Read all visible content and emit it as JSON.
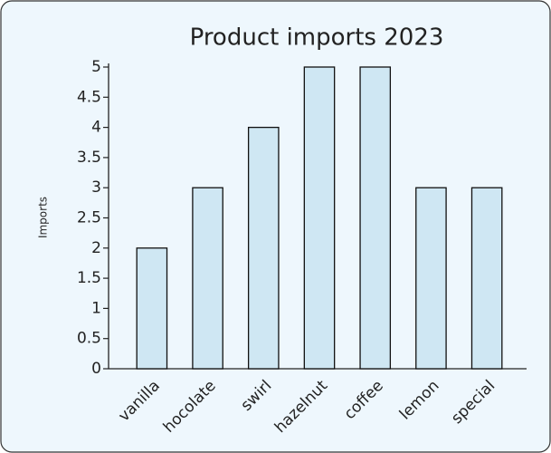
{
  "chart_data": {
    "type": "bar",
    "title": "Product imports 2023",
    "ylabel": "Imports",
    "categories": [
      "vanilla",
      "hocolate",
      "swirl",
      "hazelnut",
      "coffee",
      "lemon",
      "special"
    ],
    "values": [
      2,
      3,
      4,
      5,
      5,
      3,
      3
    ],
    "color": "#cfe7f3",
    "ylim": [
      0,
      5
    ],
    "yticks": [
      0,
      0.5,
      1,
      1.5,
      2,
      2.5,
      3,
      3.5,
      4,
      4.5,
      5
    ]
  }
}
